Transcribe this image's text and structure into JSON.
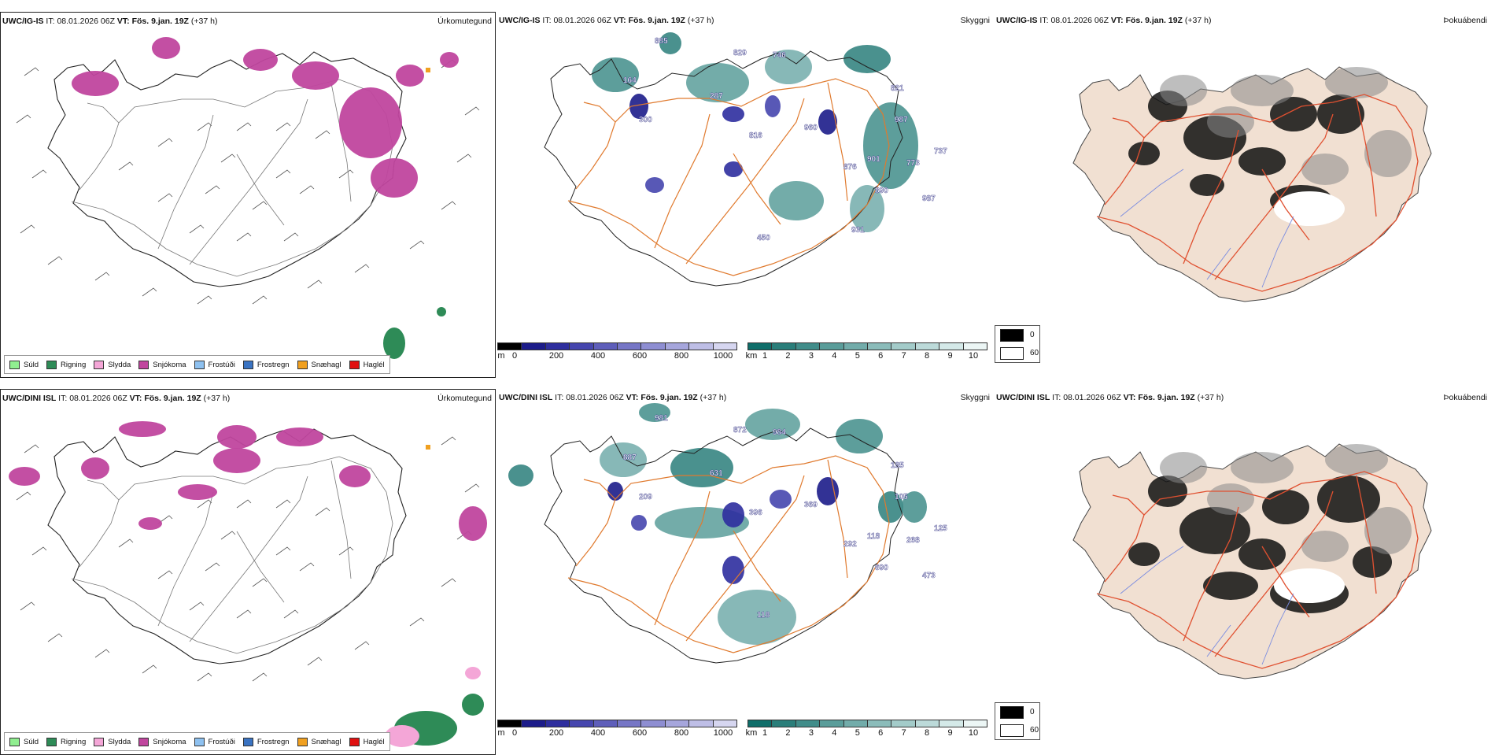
{
  "rows": [
    {
      "model": "UWC/IG-IS",
      "it_label": "IT:",
      "it_value": "08.01.2026 06Z",
      "vt_label": "VT:",
      "vt_value": "Fös. 9.jan. 19Z",
      "lead": "(+37 h)",
      "sky_labels": [
        "885",
        "829",
        "746",
        "164",
        "287",
        "300",
        "816",
        "960",
        "876",
        "821",
        "987",
        "737",
        "901",
        "773",
        "890",
        "987",
        "450",
        "931"
      ],
      "titles": {
        "precip": "Úrkomutegund",
        "cloud": "Skyggni",
        "fog": "Þokuábendi"
      }
    },
    {
      "model": "UWC/DINI ISL",
      "it_label": "IT:",
      "it_value": "08.01.2026 06Z",
      "vt_label": "VT:",
      "vt_value": "Fös. 9.jan. 19Z",
      "lead": "(+37 h)",
      "sky_labels": [
        "981",
        "872",
        "984",
        "887",
        "631",
        "209",
        "396",
        "369",
        "292",
        "185",
        "105",
        "125",
        "118",
        "268",
        "690",
        "473",
        "118"
      ],
      "titles": {
        "precip": "Úrkomutegund",
        "cloud": "Skyggni",
        "fog": "Þokuábendi"
      }
    }
  ],
  "precip_legend": [
    {
      "label": "Súld",
      "color": "#90ee90"
    },
    {
      "label": "Rigning",
      "color": "#2e8b57"
    },
    {
      "label": "Slydda",
      "color": "#f4a6d7"
    },
    {
      "label": "Snjókoma",
      "color": "#c0469e"
    },
    {
      "label": "Frostúði",
      "color": "#8ec1f0"
    },
    {
      "label": "Frostregn",
      "color": "#3a73c2"
    },
    {
      "label": "Snæhagl",
      "color": "#f0a020"
    },
    {
      "label": "Haglél",
      "color": "#e01010"
    }
  ],
  "ceiling_bar": {
    "unit": "m",
    "ticks": [
      "0",
      "200",
      "400",
      "600",
      "800",
      "1000"
    ],
    "colors": [
      "#000000",
      "#1c1c8a",
      "#2e2e9e",
      "#4646ae",
      "#5e5eba",
      "#7676c6",
      "#8e8ed2",
      "#a6a6dc",
      "#bebee6",
      "#d6d6f0"
    ]
  },
  "visibility_bar": {
    "unit": "km",
    "ticks": [
      "1",
      "2",
      "3",
      "4",
      "5",
      "6",
      "7",
      "8",
      "9",
      "10"
    ],
    "colors": [
      "#0f6e6a",
      "#2a7e7a",
      "#418d8a",
      "#5a9d9a",
      "#72acaa",
      "#8bbcba",
      "#a3cbc9",
      "#bcdad9",
      "#d4e9e8",
      "#ecf6f5"
    ]
  },
  "fog_legend": [
    {
      "label": "0",
      "color": "#000000"
    },
    {
      "label": "60",
      "color": "#ffffff"
    }
  ],
  "colors": {
    "road": "#e07a2e",
    "road_fog": "#e05030",
    "land_fog": "#f1e0d2",
    "river": "#7a8ce0"
  }
}
